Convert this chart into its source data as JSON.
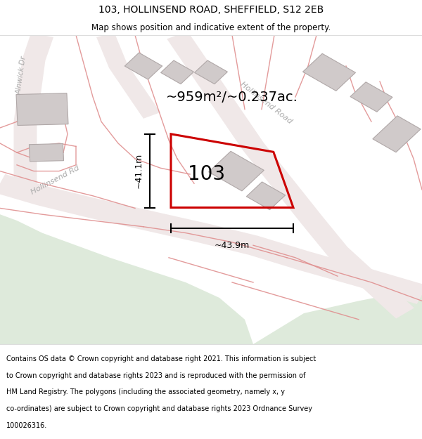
{
  "title": "103, HOLLINSEND ROAD, SHEFFIELD, S12 2EB",
  "subtitle": "Map shows position and indicative extent of the property.",
  "area_label": "~959m²/~0.237ac.",
  "width_label": "~43.9m",
  "height_label": "~41.1m",
  "number_label": "103",
  "footer_lines": [
    "Contains OS data © Crown copyright and database right 2021. This information is subject",
    "to Crown copyright and database rights 2023 and is reproduced with the permission of",
    "HM Land Registry. The polygons (including the associated geometry, namely x, y",
    "co-ordinates) are subject to Crown copyright and database rights 2023 Ordnance Survey",
    "100026316."
  ],
  "map_bg": "#f9f6f6",
  "road_fill": "#f0e8e8",
  "green_color": "#deeadb",
  "building_color": "#d0caca",
  "building_edge": "#b8b0b0",
  "boundary_color": "#e09090",
  "red_color": "#cc0000",
  "title_fontsize": 10,
  "subtitle_fontsize": 8.5,
  "footer_fontsize": 7.0,
  "area_fontsize": 14,
  "number_fontsize": 20,
  "dim_fontsize": 9,
  "road_label_color": "#aaaaaa",
  "road_label_fontsize": 8
}
